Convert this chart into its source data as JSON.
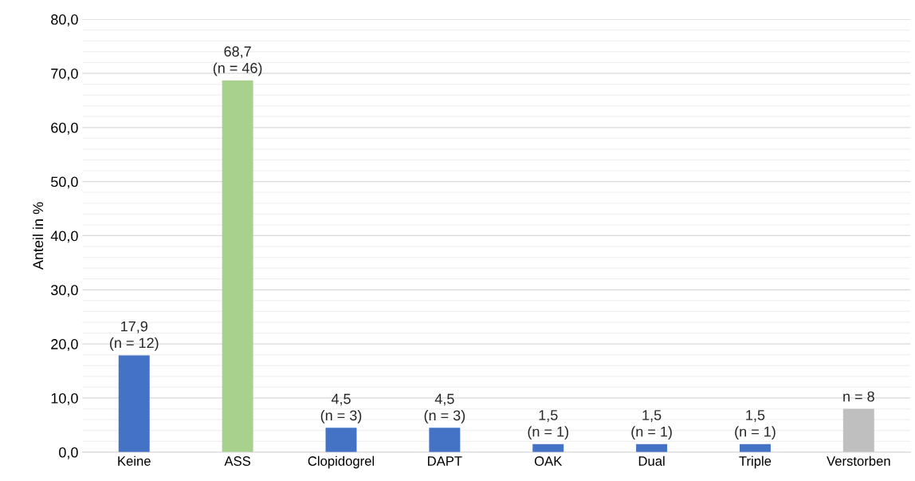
{
  "chart_data": {
    "type": "bar",
    "ylabel": "Anteil in %",
    "categories": [
      "Keine",
      "ASS",
      "Clopidogrel",
      "DAPT",
      "OAK",
      "Dual",
      "Triple",
      "Verstorben"
    ],
    "values": [
      17.9,
      68.7,
      4.5,
      4.5,
      1.5,
      1.5,
      1.5,
      8.0
    ],
    "colors": [
      "#4472c4",
      "#a9d18e",
      "#4472c4",
      "#4472c4",
      "#4472c4",
      "#4472c4",
      "#4472c4",
      "#bfbfbf"
    ],
    "value_labels": [
      "17,9\n(n = 12)",
      "68,7\n(n = 46)",
      "4,5\n(n = 3)",
      "4,5\n(n = 3)",
      "1,5\n(n = 1)",
      "1,5\n(n = 1)",
      "1,5\n(n = 1)",
      "n = 8"
    ],
    "ylim": [
      0,
      80
    ],
    "yticks": [
      {
        "value": 0,
        "label": "0,0"
      },
      {
        "value": 2,
        "label": null
      },
      {
        "value": 4,
        "label": null
      },
      {
        "value": 6,
        "label": null
      },
      {
        "value": 8,
        "label": null
      },
      {
        "value": 10,
        "label": "10,0"
      },
      {
        "value": 12,
        "label": null
      },
      {
        "value": 14,
        "label": null
      },
      {
        "value": 16,
        "label": null
      },
      {
        "value": 18,
        "label": null
      },
      {
        "value": 20,
        "label": "20,0"
      },
      {
        "value": 22,
        "label": null
      },
      {
        "value": 24,
        "label": null
      },
      {
        "value": 26,
        "label": null
      },
      {
        "value": 28,
        "label": null
      },
      {
        "value": 30,
        "label": "30,0"
      },
      {
        "value": 32,
        "label": null
      },
      {
        "value": 34,
        "label": null
      },
      {
        "value": 36,
        "label": null
      },
      {
        "value": 38,
        "label": null
      },
      {
        "value": 40,
        "label": "40,0"
      },
      {
        "value": 42,
        "label": null
      },
      {
        "value": 44,
        "label": null
      },
      {
        "value": 46,
        "label": null
      },
      {
        "value": 48,
        "label": null
      },
      {
        "value": 50,
        "label": "50,0"
      },
      {
        "value": 52,
        "label": null
      },
      {
        "value": 54,
        "label": null
      },
      {
        "value": 56,
        "label": null
      },
      {
        "value": 58,
        "label": null
      },
      {
        "value": 60,
        "label": "60,0"
      },
      {
        "value": 62,
        "label": null
      },
      {
        "value": 64,
        "label": null
      },
      {
        "value": 66,
        "label": null
      },
      {
        "value": 68,
        "label": null
      },
      {
        "value": 70,
        "label": "70,0"
      },
      {
        "value": 72,
        "label": null
      },
      {
        "value": 74,
        "label": null
      },
      {
        "value": 76,
        "label": null
      },
      {
        "value": 78,
        "label": null
      },
      {
        "value": 80,
        "label": "80,0"
      }
    ],
    "grid": "y",
    "legend": false
  }
}
